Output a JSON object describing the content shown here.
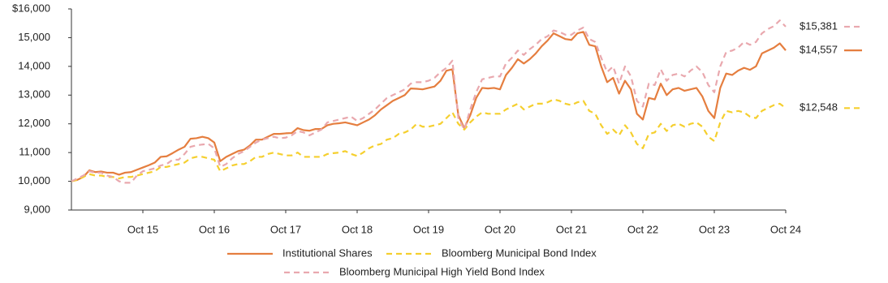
{
  "chart_data": {
    "type": "line",
    "categories": [
      null,
      null,
      null,
      null,
      null,
      null,
      null,
      null,
      null,
      null,
      null,
      null,
      "Oct 15",
      null,
      null,
      null,
      null,
      null,
      null,
      null,
      null,
      null,
      null,
      null,
      "Oct 16",
      null,
      null,
      null,
      null,
      null,
      null,
      null,
      null,
      null,
      null,
      null,
      "Oct 17",
      null,
      null,
      null,
      null,
      null,
      null,
      null,
      null,
      null,
      null,
      null,
      "Oct 18",
      null,
      null,
      null,
      null,
      null,
      null,
      null,
      null,
      null,
      null,
      null,
      "Oct 19",
      null,
      null,
      null,
      null,
      null,
      null,
      null,
      null,
      null,
      null,
      null,
      "Oct 20",
      null,
      null,
      null,
      null,
      null,
      null,
      null,
      null,
      null,
      null,
      null,
      "Oct 21",
      null,
      null,
      null,
      null,
      null,
      null,
      null,
      null,
      null,
      null,
      null,
      "Oct 22",
      null,
      null,
      null,
      null,
      null,
      null,
      null,
      null,
      null,
      null,
      null,
      "Oct 23",
      null,
      null,
      null,
      null,
      null,
      null,
      null,
      null,
      null,
      null,
      null,
      "Oct 24"
    ],
    "ylim": [
      9000,
      16000
    ],
    "yticks": [
      {
        "value": 9000,
        "label": "9,000"
      },
      {
        "value": 10000,
        "label": "10,000"
      },
      {
        "value": 11000,
        "label": "11,000"
      },
      {
        "value": 12000,
        "label": "12,000"
      },
      {
        "value": 13000,
        "label": "13,000"
      },
      {
        "value": 14000,
        "label": "14,000"
      },
      {
        "value": 15000,
        "label": "15,000"
      },
      {
        "value": 16000,
        "label": "$16,000"
      }
    ],
    "grid": false,
    "series": [
      {
        "name": "Institutional Shares",
        "color": "#e57e3f",
        "dashed": false,
        "values": [
          10000,
          10050,
          10150,
          10380,
          10320,
          10340,
          10300,
          10300,
          10230,
          10300,
          10320,
          10400,
          10480,
          10560,
          10650,
          10850,
          10870,
          10980,
          11100,
          11200,
          11480,
          11500,
          11550,
          11500,
          11350,
          10700,
          10850,
          10950,
          11050,
          11100,
          11250,
          11450,
          11450,
          11550,
          11650,
          11650,
          11670,
          11680,
          11850,
          11780,
          11760,
          11820,
          11820,
          11950,
          12000,
          12020,
          12050,
          12000,
          11950,
          12050,
          12150,
          12300,
          12500,
          12650,
          12800,
          12900,
          13000,
          13230,
          13220,
          13200,
          13250,
          13300,
          13500,
          13850,
          13900,
          12300,
          11850,
          12300,
          12900,
          13250,
          13230,
          13250,
          13200,
          13700,
          13950,
          14250,
          14100,
          14250,
          14450,
          14700,
          14900,
          15150,
          15050,
          14950,
          14920,
          15150,
          15200,
          14750,
          14700,
          14000,
          13450,
          13600,
          13050,
          13500,
          13200,
          12350,
          12150,
          12900,
          12850,
          13400,
          13000,
          13200,
          13250,
          13150,
          13200,
          13250,
          12950,
          12450,
          12200,
          13250,
          13750,
          13700,
          13850,
          13950,
          13880,
          14000,
          14450,
          14550,
          14650,
          14800,
          14557
        ],
        "value_labels": {
          "120": "$14,557"
        }
      },
      {
        "name": "Bloomberg Municipal Bond Index",
        "color": "#f5cf2e",
        "dashed": true,
        "values": [
          10000,
          10050,
          10150,
          10250,
          10200,
          10200,
          10150,
          10150,
          10100,
          10150,
          10150,
          10200,
          10250,
          10300,
          10350,
          10500,
          10500,
          10550,
          10600,
          10650,
          10800,
          10850,
          10850,
          10800,
          10750,
          10350,
          10450,
          10550,
          10600,
          10600,
          10700,
          10850,
          10850,
          10950,
          11000,
          10950,
          10900,
          10900,
          11000,
          10850,
          10850,
          10850,
          10850,
          10950,
          10980,
          11000,
          11050,
          10950,
          10880,
          11000,
          11150,
          11250,
          11300,
          11450,
          11500,
          11650,
          11700,
          11800,
          12000,
          11900,
          11900,
          11950,
          12000,
          12200,
          12400,
          12000,
          11800,
          12050,
          12250,
          12400,
          12350,
          12350,
          12350,
          12500,
          12600,
          12700,
          12500,
          12600,
          12700,
          12700,
          12750,
          12850,
          12800,
          12700,
          12650,
          12750,
          12800,
          12450,
          12350,
          11950,
          11650,
          11800,
          11600,
          11950,
          11700,
          11300,
          11150,
          11650,
          11700,
          12000,
          11750,
          11950,
          12000,
          11900,
          12000,
          12050,
          11900,
          11550,
          11400,
          12050,
          12450,
          12400,
          12450,
          12400,
          12250,
          12200,
          12450,
          12550,
          12650,
          12700,
          12548
        ],
        "value_labels": {
          "120": "$12,548"
        }
      },
      {
        "name": "Bloomberg Municipal High Yield Bond Index",
        "color": "#e9a8ae",
        "dashed": true,
        "values": [
          10000,
          10100,
          10200,
          10350,
          10300,
          10300,
          10200,
          10150,
          10000,
          9950,
          9950,
          10200,
          10350,
          10400,
          10450,
          10550,
          10600,
          10750,
          10750,
          10950,
          11200,
          11250,
          11280,
          11300,
          11150,
          10500,
          10600,
          10800,
          10950,
          11050,
          11200,
          11350,
          11450,
          11500,
          11550,
          11500,
          11520,
          11600,
          11750,
          11700,
          11600,
          11700,
          11800,
          12050,
          12100,
          12150,
          12200,
          12250,
          12100,
          12200,
          12350,
          12500,
          12700,
          12900,
          13000,
          13100,
          13200,
          13400,
          13450,
          13450,
          13500,
          13600,
          13800,
          13950,
          14200,
          12200,
          11800,
          12500,
          13100,
          13550,
          13600,
          13650,
          13650,
          14100,
          14300,
          14550,
          14400,
          14600,
          14750,
          14950,
          15050,
          15250,
          15200,
          15100,
          15100,
          15250,
          15350,
          14950,
          14850,
          14300,
          13800,
          14000,
          13400,
          14000,
          13650,
          12800,
          12600,
          13400,
          13350,
          13900,
          13500,
          13700,
          13750,
          13650,
          13850,
          14000,
          13800,
          13350,
          13100,
          14000,
          14500,
          14550,
          14650,
          14850,
          14750,
          14850,
          15150,
          15300,
          15400,
          15600,
          15381
        ],
        "value_labels": {
          "120": "$15,381"
        }
      }
    ]
  }
}
